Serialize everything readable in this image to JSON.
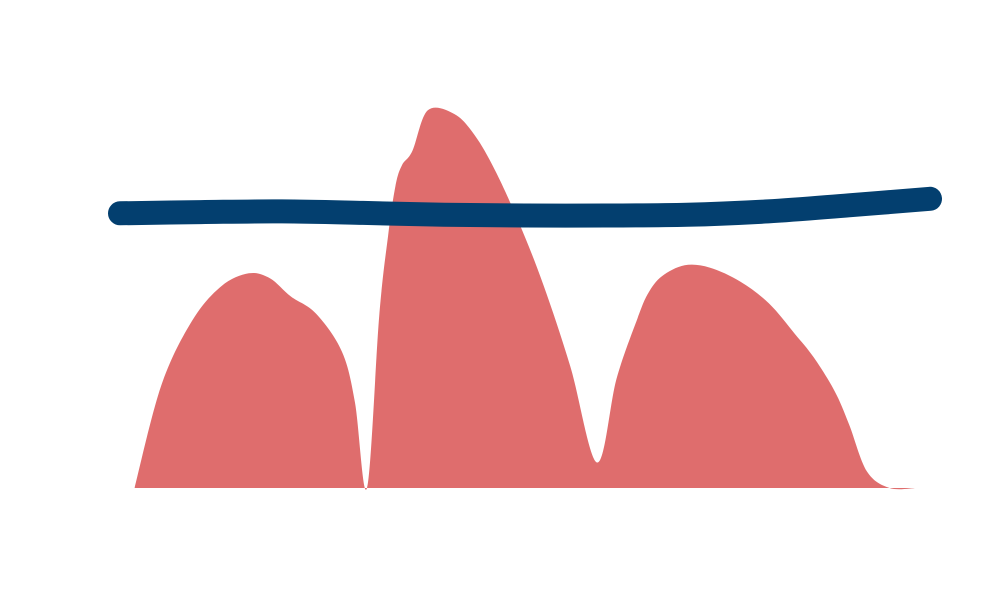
{
  "chart_data": {
    "type": "area",
    "title": "",
    "xlabel": "",
    "ylabel": "",
    "grid": false,
    "legend": "none",
    "colors": {
      "hills": "#df6d6d",
      "line": "#033f6f",
      "background": "#ffffff"
    },
    "xlim": [
      0,
      100
    ],
    "ylim": [
      0,
      100
    ],
    "series": [
      {
        "type": "area",
        "x": [
          1.8,
          5.1,
          8.9,
          12.5,
          15.9,
          18.5,
          21.1,
          24.2,
          27.4,
          29.0,
          30.5,
          32.0,
          33.1,
          34.0,
          34.8,
          36.1,
          38.0,
          41.3,
          43.8,
          46.3,
          49.3,
          52.3,
          55.6,
          58.9,
          61.3,
          63.9,
          65.2,
          66.9,
          69.7,
          72.8,
          76.6,
          80.1,
          83.3,
          85.6,
          88.2,
          90.0,
          92.2,
          95.0,
          98.3
        ],
        "y": [
          0,
          27,
          44,
          53.1,
          56.5,
          55.2,
          50.4,
          45.9,
          35.9,
          22.6,
          0,
          45.2,
          66.4,
          79.4,
          84.9,
          88.7,
          99.4,
          98.4,
          92.8,
          83.6,
          69.6,
          53.3,
          31.9,
          6.7,
          28.7,
          44.7,
          51.2,
          55.7,
          58.6,
          58.0,
          54.3,
          48.6,
          40.6,
          34.5,
          25.6,
          16.8,
          4.4,
          0,
          0
        ]
      },
      {
        "type": "line",
        "x": [
          0,
          10,
          20,
          30,
          40,
          50,
          60,
          70,
          80,
          90,
          100
        ],
        "y": [
          72.3,
          72.6,
          72.8,
          72.4,
          71.9,
          71.7,
          71.7,
          71.9,
          72.8,
          74.4,
          76.1
        ]
      }
    ]
  }
}
